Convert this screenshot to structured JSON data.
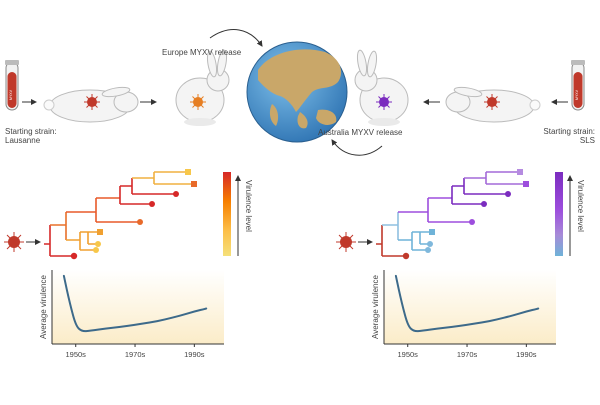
{
  "labels": {
    "europe_release": "Europe MYXV release",
    "australia_release": "Australia MYXV release",
    "start_left_line1": "Starting strain:",
    "start_left_line2": "Lausanne",
    "start_right_line1": "Starting strain:",
    "start_right_line2": "SLS",
    "tube_text": "MYXV"
  },
  "legend": {
    "virulence_label": "Virulence level"
  },
  "charts": {
    "ylabel": "Average virulence",
    "ticks": [
      "1950s",
      "1970s",
      "1990s"
    ]
  },
  "colors": {
    "europe_gradient": [
      "#d62828",
      "#f77f00",
      "#fcbf49",
      "#f5e07a"
    ],
    "australia_gradient": [
      "#7b2cbf",
      "#9d4edd",
      "#a78bd8",
      "#6fb3d8"
    ],
    "virus_red": "#c0392b",
    "virus_orange": "#e67e22",
    "virus_purple": "#7b2cbf",
    "curve": "#3d6a8a",
    "globe_ocean": "#3a86c4",
    "globe_land": "#c9a769"
  },
  "icons": [
    "test-tube-icon",
    "rabbit-icon",
    "virus-icon",
    "globe-icon",
    "arrow-icon"
  ],
  "chart_data": [
    {
      "type": "line",
      "title": "",
      "xlabel": "",
      "ylabel": "Average virulence",
      "x": [
        1946,
        1948,
        1950,
        1952,
        1955,
        1960,
        1965,
        1970,
        1975,
        1980,
        1985,
        1990,
        1994
      ],
      "series": [
        {
          "values": [
            0.92,
            0.55,
            0.25,
            0.17,
            0.18,
            0.21,
            0.23,
            0.26,
            0.29,
            0.33,
            0.38,
            0.44,
            0.48
          ]
        }
      ],
      "xlim": [
        1942,
        2000
      ],
      "ylim": [
        0,
        1
      ],
      "xticks": [
        "1950s",
        "1970s",
        "1990s"
      ]
    },
    {
      "type": "line",
      "title": "",
      "xlabel": "",
      "ylabel": "Average virulence",
      "x": [
        1946,
        1948,
        1950,
        1952,
        1955,
        1960,
        1965,
        1970,
        1975,
        1980,
        1985,
        1990,
        1994
      ],
      "series": [
        {
          "values": [
            0.92,
            0.55,
            0.25,
            0.17,
            0.18,
            0.21,
            0.23,
            0.26,
            0.29,
            0.33,
            0.38,
            0.44,
            0.48
          ]
        }
      ],
      "xlim": [
        1942,
        2000
      ],
      "ylim": [
        0,
        1
      ],
      "xticks": [
        "1950s",
        "1970s",
        "1990s"
      ]
    }
  ]
}
